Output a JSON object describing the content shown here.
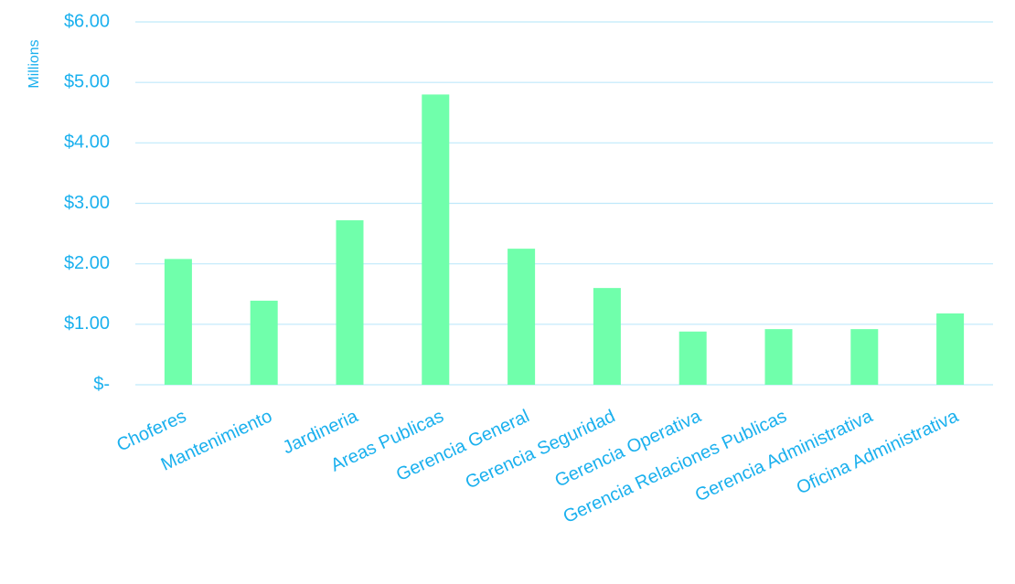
{
  "chart_data": {
    "type": "bar",
    "y_axis_label": "Millions",
    "categories": [
      "Choferes",
      "Mantenimiento",
      "Jardineria",
      "Areas Publicas",
      "Gerencia General",
      "Gerencia Seguridad",
      "Gerencia Operativa",
      "Gerencia Relaciones Publicas",
      "Gerencia Administrativa",
      "Oficina Administrativa"
    ],
    "values": [
      2.08,
      1.39,
      2.72,
      4.8,
      2.25,
      1.6,
      0.88,
      0.92,
      0.92,
      1.18
    ],
    "color": "#70ffab",
    "ylim": [
      0,
      6
    ],
    "yticks": [
      {
        "value": 0,
        "label": "$-"
      },
      {
        "value": 1,
        "label": "$1.00"
      },
      {
        "value": 2,
        "label": "$2.00"
      },
      {
        "value": 3,
        "label": "$3.00"
      },
      {
        "value": 4,
        "label": "$4.00"
      },
      {
        "value": 5,
        "label": "$5.00"
      },
      {
        "value": 6,
        "label": "$6.00"
      }
    ],
    "grid": true
  }
}
